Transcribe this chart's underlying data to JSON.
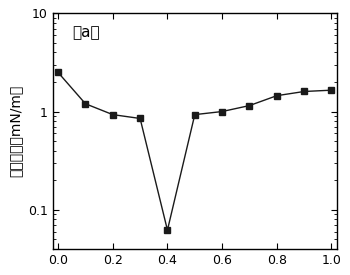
{
  "x": [
    0.0,
    0.1,
    0.2,
    0.3,
    0.4,
    0.5,
    0.6,
    0.7,
    0.8,
    0.9,
    1.0
  ],
  "y": [
    2.5,
    1.2,
    0.93,
    0.85,
    0.062,
    0.93,
    1.0,
    1.15,
    1.45,
    1.6,
    1.65
  ],
  "ylabel": "界面张力（mN/m）",
  "annotation": "（a）",
  "ylim_min": 0.04,
  "ylim_max": 10,
  "xlim_min": -0.02,
  "xlim_max": 1.02,
  "marker": "s",
  "marker_color": "#1a1a1a",
  "line_color": "#1a1a1a",
  "line_style": "-",
  "marker_size": 5,
  "background_color": "#ffffff",
  "yticks": [
    0.1,
    1,
    10
  ],
  "ytick_labels": [
    "0.1",
    "1",
    "10"
  ],
  "xticks": [
    0.0,
    0.2,
    0.4,
    0.6,
    0.8,
    1.0
  ],
  "xtick_labels": [
    "0.0",
    "0.2",
    "0.4",
    "0.6",
    "0.8",
    "1.0"
  ]
}
